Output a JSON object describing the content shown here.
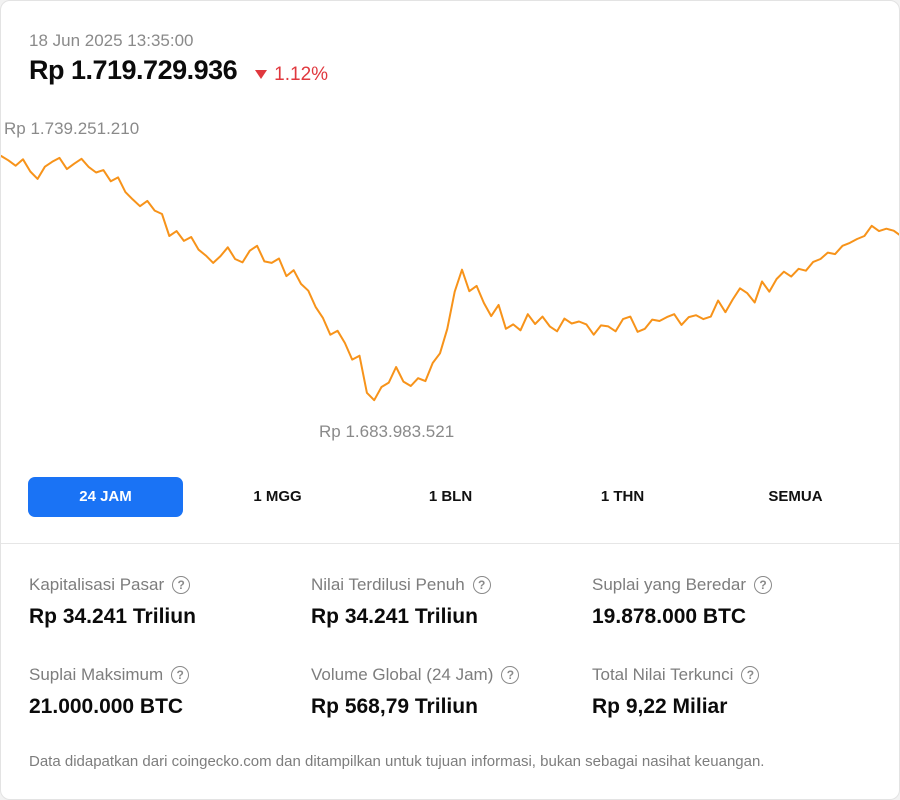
{
  "header": {
    "timestamp": "18 Jun 2025 13:35:00",
    "price": "Rp 1.719.729.936",
    "change": "1.12%",
    "change_direction": "down",
    "change_color": "#e0383e"
  },
  "chart_data": {
    "type": "line",
    "max_label": "Rp 1.739.251.210",
    "min_label": "Rp 1.683.983.521",
    "line_color": "#f7931a",
    "ylim": [
      1683983521,
      1739251210
    ],
    "series": [
      {
        "values": [
          1736200000,
          1735300000,
          1734200000,
          1735500000,
          1733000000,
          1731500000,
          1734000000,
          1735000000,
          1735800000,
          1733500000,
          1734600000,
          1735600000,
          1733900000,
          1732800000,
          1733300000,
          1731000000,
          1731800000,
          1728800000,
          1727300000,
          1725900000,
          1727000000,
          1725000000,
          1724300000,
          1719800000,
          1720800000,
          1718800000,
          1719600000,
          1717000000,
          1715800000,
          1714300000,
          1715700000,
          1717500000,
          1715100000,
          1714400000,
          1716800000,
          1717800000,
          1714600000,
          1714300000,
          1715200000,
          1711600000,
          1712800000,
          1710000000,
          1708600000,
          1705300000,
          1703000000,
          1699600000,
          1700400000,
          1697900000,
          1694500000,
          1695300000,
          1687700000,
          1686200000,
          1688900000,
          1689800000,
          1693000000,
          1690000000,
          1689100000,
          1690700000,
          1690100000,
          1693800000,
          1695800000,
          1700800000,
          1708400000,
          1712900000,
          1708500000,
          1709600000,
          1706100000,
          1703400000,
          1705700000,
          1700800000,
          1701700000,
          1700500000,
          1703800000,
          1701800000,
          1703300000,
          1701300000,
          1700300000,
          1702900000,
          1701900000,
          1702300000,
          1701700000,
          1699600000,
          1701500000,
          1701300000,
          1700300000,
          1702800000,
          1703300000,
          1700200000,
          1700800000,
          1702700000,
          1702400000,
          1703200000,
          1703800000,
          1701600000,
          1703200000,
          1703600000,
          1702800000,
          1703300000,
          1706600000,
          1704200000,
          1706800000,
          1709100000,
          1708100000,
          1706200000,
          1710500000,
          1708400000,
          1711000000,
          1712500000,
          1711500000,
          1713100000,
          1712700000,
          1714500000,
          1715100000,
          1716400000,
          1716100000,
          1717800000,
          1718400000,
          1719200000,
          1719800000,
          1721900000,
          1720800000,
          1721300000,
          1720900000,
          1719800000
        ]
      }
    ]
  },
  "tabs": [
    {
      "label": "24 JAM",
      "active": true
    },
    {
      "label": "1 MGG",
      "active": false
    },
    {
      "label": "1 BLN",
      "active": false
    },
    {
      "label": "1 THN",
      "active": false
    },
    {
      "label": "SEMUA",
      "active": false
    }
  ],
  "accent_color": "#1a73f5",
  "stats": [
    {
      "label": "Kapitalisasi Pasar",
      "value": "Rp 34.241 Triliun"
    },
    {
      "label": "Nilai Terdilusi Penuh",
      "value": "Rp 34.241 Triliun"
    },
    {
      "label": "Suplai yang Beredar",
      "value": "19.878.000 BTC"
    },
    {
      "label": "Suplai Maksimum",
      "value": "21.000.000 BTC"
    },
    {
      "label": "Volume Global (24 Jam)",
      "value": "Rp 568,79 Triliun"
    },
    {
      "label": "Total Nilai Terkunci",
      "value": "Rp 9,22 Miliar"
    }
  ],
  "help_icon": "question-circle-icon",
  "help_glyph": "?",
  "footer": "Data didapatkan dari coingecko.com dan ditampilkan untuk tujuan informasi, bukan sebagai nasihat keuangan."
}
